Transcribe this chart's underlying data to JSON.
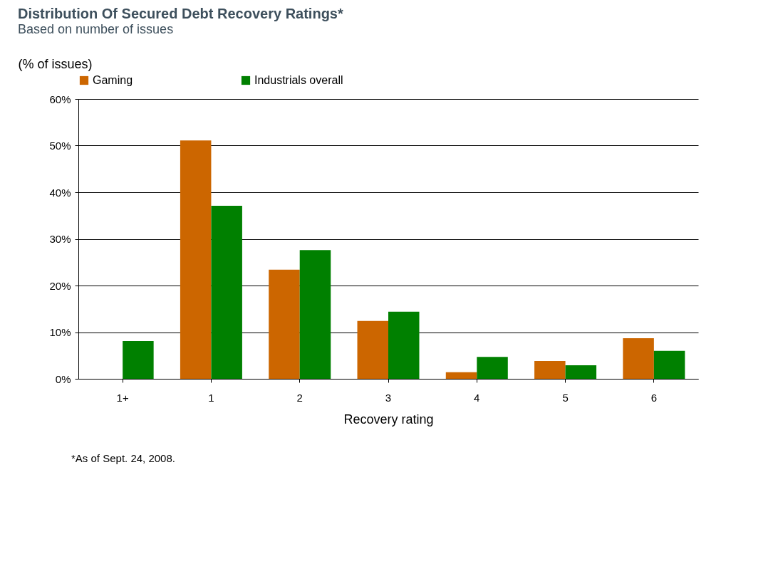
{
  "chart_data": {
    "type": "bar",
    "title": "Distribution Of Secured Debt Recovery Ratings*",
    "subtitle": "Based on number of issues",
    "xlabel": "Recovery rating",
    "ylabel": "(% of issues)",
    "categories": [
      "1+",
      "1",
      "2",
      "3",
      "4",
      "5",
      "6"
    ],
    "series": [
      {
        "name": "Gaming",
        "color": "#cc6600",
        "values": [
          0,
          51.1,
          23.4,
          12.4,
          1.4,
          3.8,
          8.7
        ]
      },
      {
        "name": "Industrials overall",
        "color": "#008000",
        "values": [
          8.1,
          37.1,
          27.6,
          14.4,
          4.7,
          2.9,
          6.0
        ]
      }
    ],
    "ylim": [
      0,
      60
    ],
    "yticks": [
      {
        "value": 0,
        "label": "0%"
      },
      {
        "value": 10,
        "label": "10%"
      },
      {
        "value": 20,
        "label": "20%"
      },
      {
        "value": 30,
        "label": "30%"
      },
      {
        "value": 40,
        "label": "40%"
      },
      {
        "value": 50,
        "label": "50%"
      },
      {
        "value": 60,
        "label": "60%"
      }
    ],
    "grid": "y",
    "legend": "top",
    "annotations": [
      "*As of Sept. 24, 2008."
    ]
  }
}
